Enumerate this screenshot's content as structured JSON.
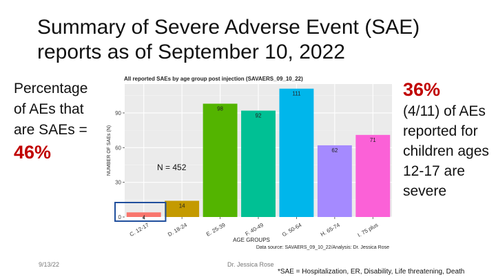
{
  "slide": {
    "title": "Summary of Severe Adverse Event (SAE) reports as of September 10, 2022",
    "left_note_text": "Percentage of AEs that are SAEs =",
    "left_note_value": "46%",
    "right_note_value": "36%",
    "right_note_text": "(4/11) of AEs reported for children ages 12-17 are severe",
    "footer_date": "9/13/22",
    "footer_author": "Dr. Jessica Rose",
    "footer_note": "*SAE = Hospitalization, ER, Disability, Life threatening, Death"
  },
  "chart_data": {
    "type": "bar",
    "title": "All reported SAEs by age group post injection (SAVAERS_09_10_22)",
    "xlabel": "AGE GROUPS",
    "ylabel": "NUMBER OF SAEs (N)",
    "categories": [
      "C. 12-17",
      "D. 18-24",
      "E. 25-39",
      "F. 40-49",
      "G. 50-64",
      "H. 65-74",
      "I. 75 plus"
    ],
    "values": [
      4,
      14,
      98,
      92,
      111,
      62,
      71
    ],
    "colors": [
      "#f8766d",
      "#c49a00",
      "#53b400",
      "#00c094",
      "#00b6eb",
      "#a58aff",
      "#fb61d7"
    ],
    "ylim": [
      0,
      115
    ],
    "yticks": [
      0,
      30,
      60,
      90
    ],
    "annotation": "N = 452",
    "source": "Data source: SAVAERS_09_10_22/Analysis: Dr. Jessica Rose",
    "highlight_category": "C. 12-17",
    "grid": true,
    "legend": "none"
  }
}
